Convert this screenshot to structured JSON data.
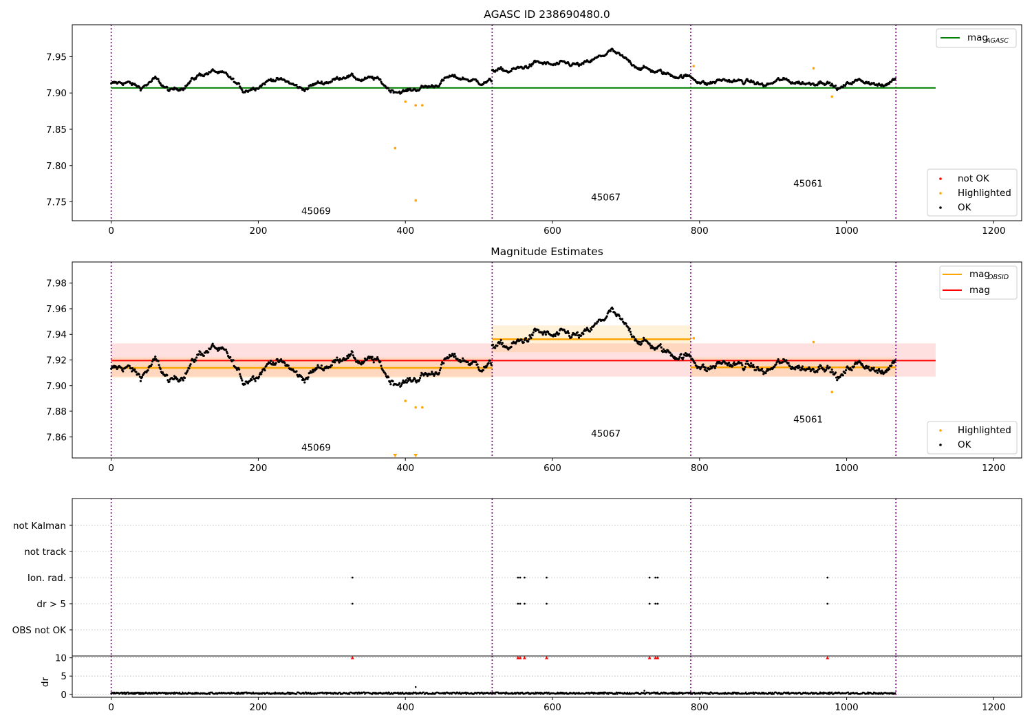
{
  "chart_data": [
    {
      "type": "scatter",
      "title": "AGASC ID 238690480.0",
      "xlim": [
        -53,
        1238
      ],
      "ylim": [
        7.724,
        7.994
      ],
      "xticks": [
        0,
        200,
        400,
        600,
        800,
        1000,
        1200
      ],
      "yticks": [
        7.75,
        7.8,
        7.85,
        7.9,
        7.95
      ],
      "obs_boundaries": [
        0,
        518,
        788,
        1067
      ],
      "obsids": [
        {
          "label": "45069",
          "x": 258,
          "y": 7.729
        },
        {
          "label": "45067",
          "x": 652,
          "y": 7.748
        },
        {
          "label": "45061",
          "x": 927,
          "y": 7.767
        }
      ],
      "mag_agasc": {
        "value": 7.907,
        "x_range": [
          0,
          1121
        ],
        "color": "#008000"
      },
      "highlighted": [
        {
          "x": 386,
          "y": 7.824
        },
        {
          "x": 400,
          "y": 7.888
        },
        {
          "x": 414,
          "y": 7.883
        },
        {
          "x": 414,
          "y": 7.752
        },
        {
          "x": 423,
          "y": 7.883
        },
        {
          "x": 792,
          "y": 7.937
        },
        {
          "x": 955,
          "y": 7.934
        },
        {
          "x": 980,
          "y": 7.895
        }
      ],
      "ok_series": {
        "segments": [
          {
            "x_range": [
              0,
              518
            ],
            "values": [
              [
                0,
                7.912
              ],
              [
                20,
                7.915
              ],
              [
                40,
                7.907
              ],
              [
                60,
                7.919
              ],
              [
                80,
                7.902
              ],
              [
                100,
                7.91
              ],
              [
                120,
                7.925
              ],
              [
                140,
                7.93
              ],
              [
                160,
                7.922
              ],
              [
                180,
                7.903
              ],
              [
                200,
                7.91
              ],
              [
                220,
                7.92
              ],
              [
                240,
                7.915
              ],
              [
                260,
                7.905
              ],
              [
                280,
                7.913
              ],
              [
                300,
                7.917
              ],
              [
                320,
                7.925
              ],
              [
                340,
                7.918
              ],
              [
                360,
                7.92
              ],
              [
                380,
                7.904
              ],
              [
                400,
                7.902
              ],
              [
                420,
                7.907
              ],
              [
                440,
                7.91
              ],
              [
                460,
                7.922
              ],
              [
                480,
                7.92
              ],
              [
                500,
                7.915
              ],
              [
                518,
                7.916
              ]
            ]
          },
          {
            "x_range": [
              518,
              788
            ],
            "values": [
              [
                518,
                7.932
              ],
              [
                540,
                7.93
              ],
              [
                560,
                7.935
              ],
              [
                580,
                7.942
              ],
              [
                600,
                7.938
              ],
              [
                620,
                7.94
              ],
              [
                640,
                7.938
              ],
              [
                660,
                7.947
              ],
              [
                680,
                7.958
              ],
              [
                700,
                7.945
              ],
              [
                720,
                7.935
              ],
              [
                740,
                7.93
              ],
              [
                760,
                7.925
              ],
              [
                788,
                7.922
              ]
            ]
          },
          {
            "x_range": [
              788,
              1067
            ],
            "values": [
              [
                788,
                7.922
              ],
              [
                810,
                7.912
              ],
              [
                830,
                7.918
              ],
              [
                850,
                7.916
              ],
              [
                870,
                7.915
              ],
              [
                890,
                7.91
              ],
              [
                910,
                7.918
              ],
              [
                930,
                7.915
              ],
              [
                950,
                7.913
              ],
              [
                970,
                7.917
              ],
              [
                990,
                7.905
              ],
              [
                1010,
                7.917
              ],
              [
                1030,
                7.916
              ],
              [
                1050,
                7.908
              ],
              [
                1067,
                7.921
              ]
            ]
          }
        ],
        "count": 1067
      },
      "legends": [
        {
          "position": "upper right",
          "entries": [
            {
              "label": "mag",
              "subscript": "AGASC",
              "style": "line",
              "color": "#008000"
            }
          ]
        },
        {
          "position": "lower right",
          "entries": [
            {
              "label": "not OK",
              "style": "dot",
              "color": "#ff0000"
            },
            {
              "label": "Highlighted",
              "style": "dot",
              "color": "#ffa500"
            },
            {
              "label": "OK",
              "style": "dot",
              "color": "#000000"
            }
          ]
        }
      ]
    },
    {
      "type": "scatter",
      "title": "Magnitude Estimates",
      "xlim": [
        -53,
        1238
      ],
      "ylim": [
        7.8435,
        7.9965
      ],
      "xticks": [
        0,
        200,
        400,
        600,
        800,
        1000,
        1200
      ],
      "yticks": [
        7.86,
        7.88,
        7.9,
        7.92,
        7.94,
        7.96,
        7.98
      ],
      "obs_boundaries": [
        0,
        518,
        788,
        1067
      ],
      "obsids": [
        {
          "label": "45069",
          "x": 258,
          "y": 7.847
        },
        {
          "label": "45067",
          "x": 652,
          "y": 7.858
        },
        {
          "label": "45061",
          "x": 927,
          "y": 7.869
        }
      ],
      "mag": {
        "value": 7.9195,
        "band": [
          7.907,
          7.933
        ],
        "x_range": [
          0,
          1121
        ],
        "color": "#ff0000"
      },
      "mag_obsid": [
        {
          "x_range": [
            0,
            518
          ],
          "value": 7.9138,
          "band": [
            7.906,
            7.922
          ]
        },
        {
          "x_range": [
            518,
            788
          ],
          "value": 7.9362,
          "band": [
            7.926,
            7.947
          ]
        },
        {
          "x_range": [
            788,
            1067
          ],
          "value": 7.9142,
          "band": [
            7.907,
            7.922
          ]
        }
      ],
      "highlighted": [
        {
          "x": 400,
          "y": 7.888
        },
        {
          "x": 414,
          "y": 7.883
        },
        {
          "x": 423,
          "y": 7.883
        },
        {
          "x": 792,
          "y": 7.937
        },
        {
          "x": 955,
          "y": 7.934
        },
        {
          "x": 980,
          "y": 7.895
        }
      ],
      "highlighted_below_range": [
        386,
        414
      ],
      "legends": [
        {
          "position": "upper right",
          "entries": [
            {
              "label": "mag",
              "subscript": "OBSID",
              "style": "line",
              "color": "#ffa500"
            },
            {
              "label": "mag",
              "style": "line",
              "color": "#ff0000"
            }
          ]
        },
        {
          "position": "lower right",
          "entries": [
            {
              "label": "Highlighted",
              "style": "dot",
              "color": "#ffa500"
            },
            {
              "label": "OK",
              "style": "dot",
              "color": "#000000"
            }
          ]
        }
      ]
    },
    {
      "type": "scatter",
      "title": "",
      "xlim": [
        -53,
        1238
      ],
      "xticks": [
        0,
        200,
        400,
        600,
        800,
        1000,
        1200
      ],
      "obs_boundaries": [
        0,
        518,
        788,
        1067
      ],
      "flag_rows": [
        "not Kalman",
        "not track",
        "Ion. rad.",
        "dr > 5",
        "OBS not OK"
      ],
      "flags": {
        "Ion. rad.": [
          328,
          553,
          556,
          562,
          592,
          732,
          740,
          743
        ],
        "dr > 5": [
          328,
          553,
          556,
          562,
          592,
          732,
          740,
          743,
          974
        ]
      },
      "ion_rad_extra": [
        974
      ]
    },
    {
      "type": "scatter",
      "title": "",
      "ylabel": "dr",
      "xlim": [
        -53,
        1238
      ],
      "ylim": [
        -0.8,
        10.5
      ],
      "yticks": [
        0,
        5,
        10
      ],
      "xticks": [
        0,
        200,
        400,
        600,
        800,
        1000,
        1200
      ],
      "obs_boundaries": [
        0,
        518,
        788,
        1067
      ],
      "clipped_points": [
        328,
        553,
        556,
        562,
        592,
        732,
        740,
        743,
        974
      ],
      "typical_dr": 0.3,
      "outliers": [
        {
          "x": 414,
          "y": 2.0
        },
        {
          "x": 725,
          "y": 1.0
        }
      ]
    }
  ]
}
